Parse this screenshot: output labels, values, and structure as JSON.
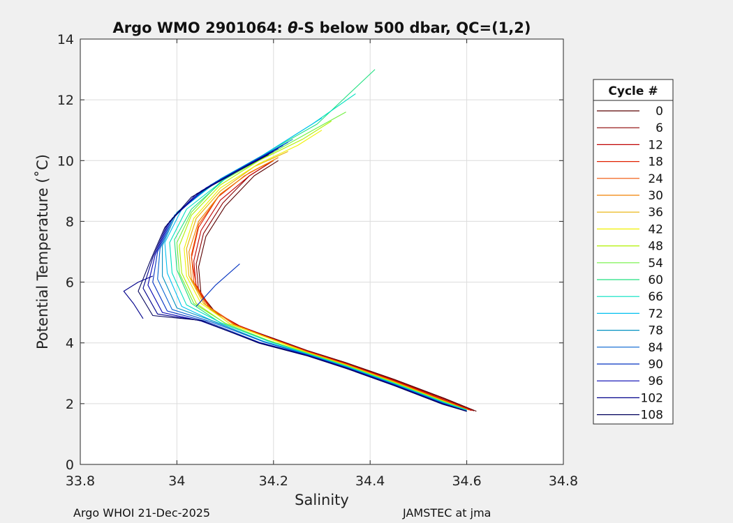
{
  "chart_data": {
    "type": "line",
    "title_prefix": "Argo WMO 2901064: ",
    "title_theta": "θ",
    "title_suffix": "-S below 500 dbar,  QC=(1,2)",
    "xlabel": "Salinity",
    "ylabel": "Potential Temperature (˚C)",
    "xlim": [
      33.8,
      34.8
    ],
    "ylim": [
      0,
      14
    ],
    "x_ticks": [
      "33.8",
      "34",
      "34.2",
      "34.4",
      "34.6",
      "34.8"
    ],
    "y_ticks": [
      "0",
      "2",
      "4",
      "6",
      "8",
      "10",
      "12",
      "14"
    ],
    "grid": true,
    "legend": {
      "title": "Cycle #",
      "placement": "right",
      "entries": [
        "0",
        "6",
        "12",
        "18",
        "24",
        "30",
        "36",
        "42",
        "48",
        "54",
        "60",
        "66",
        "72",
        "78",
        "84",
        "90",
        "96",
        "102",
        "108"
      ],
      "colors": [
        "#5a0000",
        "#8b0000",
        "#c00000",
        "#e02000",
        "#f05000",
        "#f08000",
        "#e8b000",
        "#f0f000",
        "#b0f000",
        "#70f040",
        "#20e080",
        "#00e0c0",
        "#00c0f0",
        "#0090c0",
        "#0060d0",
        "#0030c0",
        "#0000b0",
        "#00008b",
        "#00005a"
      ]
    },
    "series": [
      {
        "legend_index": 0,
        "x": [
          34.62,
          34.55,
          34.45,
          34.35,
          34.27,
          34.2,
          34.13,
          34.08,
          34.05,
          34.045,
          34.06,
          34.1,
          34.16,
          34.21
        ],
        "y": [
          1.75,
          2.2,
          2.8,
          3.35,
          3.75,
          4.15,
          4.55,
          5.0,
          5.6,
          6.5,
          7.5,
          8.5,
          9.5,
          10.0
        ]
      },
      {
        "legend_index": 1,
        "x": [
          34.615,
          34.55,
          34.45,
          34.35,
          34.27,
          34.2,
          34.13,
          34.075,
          34.045,
          34.04,
          34.055,
          34.095,
          34.15,
          34.2
        ],
        "y": [
          1.76,
          2.18,
          2.78,
          3.33,
          3.74,
          4.14,
          4.55,
          5.05,
          5.7,
          6.6,
          7.6,
          8.6,
          9.5,
          10.0
        ]
      },
      {
        "legend_index": 2,
        "x": [
          34.61,
          34.55,
          34.45,
          34.35,
          34.27,
          34.2,
          34.13,
          34.07,
          34.04,
          34.035,
          34.05,
          34.09,
          34.15,
          34.19
        ],
        "y": [
          1.77,
          2.15,
          2.76,
          3.32,
          3.73,
          4.13,
          4.56,
          5.1,
          5.8,
          6.7,
          7.7,
          8.7,
          9.5,
          9.9
        ]
      },
      {
        "legend_index": 3,
        "x": [
          34.61,
          34.55,
          34.45,
          34.35,
          34.27,
          34.2,
          34.125,
          34.07,
          34.04,
          34.03,
          34.045,
          34.085,
          34.14,
          34.18
        ],
        "y": [
          1.78,
          2.14,
          2.75,
          3.31,
          3.72,
          4.12,
          4.57,
          5.15,
          5.9,
          6.8,
          7.8,
          8.8,
          9.5,
          9.85
        ]
      },
      {
        "legend_index": 4,
        "x": [
          34.605,
          34.55,
          34.45,
          34.35,
          34.27,
          34.2,
          34.12,
          34.065,
          34.035,
          34.03,
          34.045,
          34.09,
          34.15,
          34.2
        ],
        "y": [
          1.79,
          2.12,
          2.73,
          3.3,
          3.71,
          4.11,
          4.58,
          5.2,
          6.0,
          6.9,
          7.9,
          8.9,
          9.6,
          10.0
        ]
      },
      {
        "legend_index": 5,
        "x": [
          34.6,
          34.55,
          34.45,
          34.35,
          34.27,
          34.2,
          34.12,
          34.06,
          34.03,
          34.025,
          34.045,
          34.09,
          34.15,
          34.21
        ],
        "y": [
          1.8,
          2.1,
          2.72,
          3.29,
          3.7,
          4.1,
          4.6,
          5.25,
          6.1,
          7.0,
          8.0,
          8.9,
          9.6,
          10.1
        ]
      },
      {
        "legend_index": 6,
        "x": [
          34.6,
          34.55,
          34.45,
          34.35,
          34.27,
          34.2,
          34.11,
          34.055,
          34.025,
          34.02,
          34.04,
          34.09,
          34.16,
          34.23
        ],
        "y": [
          1.8,
          2.1,
          2.71,
          3.28,
          3.69,
          4.1,
          4.62,
          5.3,
          6.2,
          7.1,
          8.1,
          9.0,
          9.8,
          10.3
        ]
      },
      {
        "legend_index": 7,
        "x": [
          34.6,
          34.55,
          34.45,
          34.35,
          34.27,
          34.2,
          34.11,
          34.05,
          34.02,
          34.015,
          34.035,
          34.09,
          34.17,
          34.25,
          34.3
        ],
        "y": [
          1.8,
          2.09,
          2.7,
          3.27,
          3.68,
          4.09,
          4.63,
          5.3,
          6.2,
          7.1,
          8.1,
          9.1,
          9.9,
          10.5,
          11.0
        ]
      },
      {
        "legend_index": 8,
        "x": [
          34.6,
          34.55,
          34.45,
          34.35,
          34.27,
          34.19,
          34.1,
          34.04,
          34.01,
          34.005,
          34.03,
          34.09,
          34.17,
          34.26,
          34.32
        ],
        "y": [
          1.8,
          2.08,
          2.69,
          3.26,
          3.67,
          4.08,
          4.64,
          5.3,
          6.3,
          7.2,
          8.2,
          9.2,
          10.0,
          10.7,
          11.3
        ]
      },
      {
        "legend_index": 9,
        "x": [
          34.6,
          34.55,
          34.45,
          34.35,
          34.27,
          34.19,
          34.1,
          34.035,
          34.005,
          34.0,
          34.03,
          34.09,
          34.18,
          34.27,
          34.35
        ],
        "y": [
          1.8,
          2.07,
          2.68,
          3.25,
          3.66,
          4.07,
          4.65,
          5.3,
          6.3,
          7.3,
          8.3,
          9.3,
          10.1,
          10.9,
          11.6
        ]
      },
      {
        "legend_index": 10,
        "x": [
          34.6,
          34.55,
          34.45,
          34.35,
          34.27,
          34.19,
          34.09,
          34.03,
          34.0,
          33.995,
          34.03,
          34.1,
          34.19,
          34.29,
          34.41
        ],
        "y": [
          1.8,
          2.06,
          2.67,
          3.24,
          3.65,
          4.06,
          4.66,
          5.3,
          6.4,
          7.4,
          8.4,
          9.4,
          10.3,
          11.2,
          13.0
        ]
      },
      {
        "legend_index": 11,
        "x": [
          34.6,
          34.55,
          34.45,
          34.35,
          34.27,
          34.19,
          34.09,
          34.02,
          33.99,
          33.985,
          34.02,
          34.1,
          34.19,
          34.28,
          34.37
        ],
        "y": [
          1.78,
          2.05,
          2.66,
          3.23,
          3.64,
          4.05,
          4.67,
          5.25,
          6.3,
          7.3,
          8.4,
          9.4,
          10.3,
          11.2,
          12.2
        ]
      },
      {
        "legend_index": 12,
        "x": [
          34.6,
          34.55,
          34.45,
          34.35,
          34.27,
          34.18,
          34.08,
          34.01,
          33.98,
          33.975,
          34.01,
          34.09,
          34.18,
          34.25,
          34.3
        ],
        "y": [
          1.77,
          2.04,
          2.65,
          3.22,
          3.63,
          4.05,
          4.68,
          5.2,
          6.3,
          7.3,
          8.4,
          9.4,
          10.2,
          10.9,
          11.4
        ]
      },
      {
        "legend_index": 13,
        "x": [
          34.6,
          34.55,
          34.45,
          34.35,
          34.27,
          34.18,
          34.08,
          34.0,
          33.97,
          33.97,
          34.0,
          34.08,
          34.17,
          34.24
        ],
        "y": [
          1.76,
          2.03,
          2.64,
          3.21,
          3.62,
          4.04,
          4.69,
          5.15,
          6.2,
          7.2,
          8.3,
          9.3,
          10.1,
          10.7
        ]
      },
      {
        "legend_index": 14,
        "x": [
          34.6,
          34.55,
          34.45,
          34.35,
          34.27,
          34.18,
          34.07,
          33.99,
          33.96,
          33.965,
          33.995,
          34.07,
          34.16,
          34.23
        ],
        "y": [
          1.75,
          2.02,
          2.63,
          3.2,
          3.61,
          4.03,
          4.7,
          5.1,
          6.1,
          7.1,
          8.2,
          9.2,
          10.0,
          10.6
        ]
      },
      {
        "legend_index": 15,
        "x": [
          34.6,
          34.55,
          34.45,
          34.35,
          34.27,
          34.17,
          34.06,
          33.98,
          33.95,
          33.96,
          33.99,
          34.06,
          34.15,
          34.22
        ],
        "y": [
          1.75,
          2.01,
          2.62,
          3.19,
          3.6,
          4.02,
          4.71,
          5.05,
          6.0,
          7.0,
          8.1,
          9.1,
          9.9,
          10.5
        ]
      },
      {
        "legend_index": 16,
        "x": [
          34.6,
          34.55,
          34.45,
          34.35,
          34.27,
          34.17,
          34.05,
          33.97,
          33.94,
          33.955,
          33.985,
          34.05,
          34.14,
          34.21
        ],
        "y": [
          1.75,
          2.0,
          2.61,
          3.18,
          3.59,
          4.01,
          4.72,
          5.0,
          5.9,
          6.9,
          8.0,
          9.0,
          9.8,
          10.4
        ]
      },
      {
        "legend_index": 17,
        "x": [
          34.6,
          34.55,
          34.45,
          34.35,
          34.27,
          34.17,
          34.05,
          33.96,
          33.93,
          33.95,
          33.98,
          34.04,
          34.13,
          34.2
        ],
        "y": [
          1.75,
          1.99,
          2.6,
          3.17,
          3.58,
          4.0,
          4.73,
          4.95,
          5.8,
          6.8,
          7.9,
          8.9,
          9.7,
          10.3
        ]
      },
      {
        "legend_index": 18,
        "x": [
          34.6,
          34.55,
          34.45,
          34.35,
          34.27,
          34.17,
          34.05,
          33.95,
          33.92,
          33.945,
          33.975,
          34.03,
          34.12,
          34.19
        ],
        "y": [
          1.75,
          1.98,
          2.59,
          3.16,
          3.57,
          3.99,
          4.74,
          4.9,
          5.7,
          6.7,
          7.8,
          8.8,
          9.6,
          10.2
        ]
      },
      {
        "legend_index": 15,
        "x": [
          34.04,
          34.08,
          34.13
        ],
        "y": [
          5.2,
          5.9,
          6.6
        ]
      },
      {
        "legend_index": 17,
        "x": [
          33.93,
          33.91,
          33.89,
          33.92,
          33.95
        ],
        "y": [
          4.8,
          5.3,
          5.7,
          6.0,
          6.2
        ]
      }
    ]
  },
  "footer": {
    "left": "Argo WHOI 21-Dec-2025",
    "right": "JAMSTEC at jma"
  }
}
